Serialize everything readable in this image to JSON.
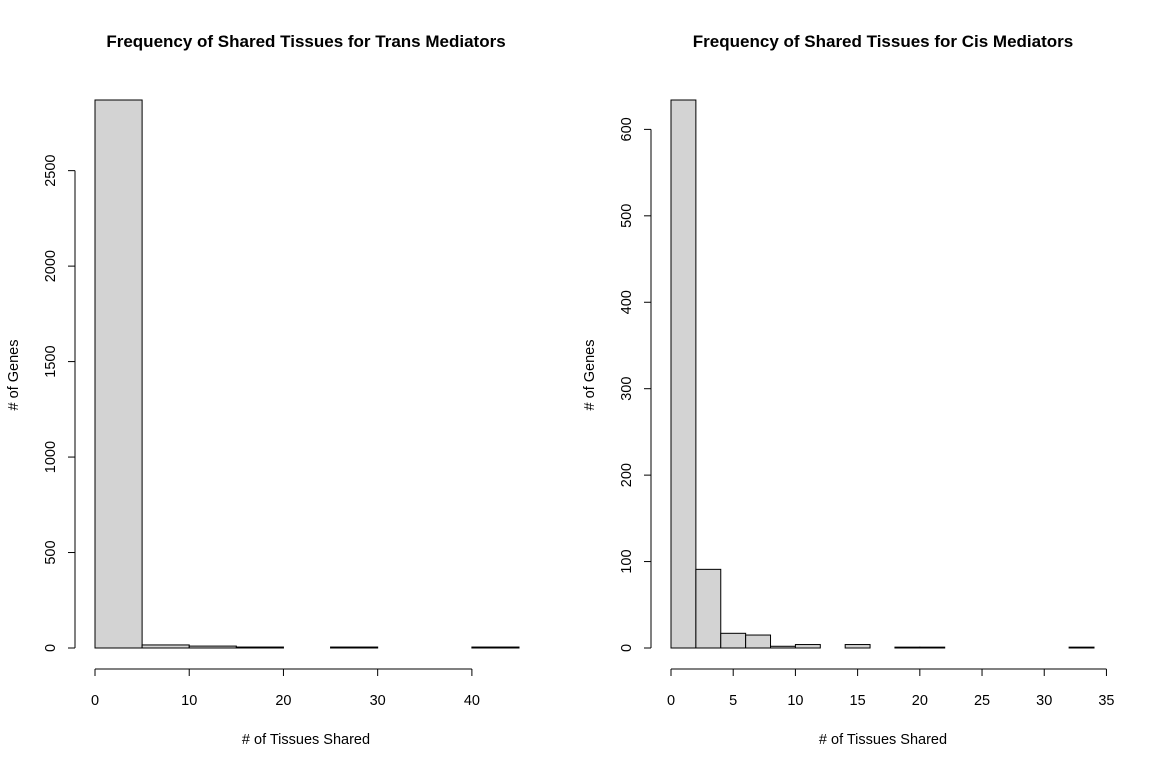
{
  "chart_data": [
    {
      "type": "bar",
      "title": "Frequency of Shared Tissues for Trans Mediators",
      "xlabel": "# of Tissues Shared",
      "ylabel": "# of Genes",
      "bin_edges": [
        0,
        5,
        10,
        15,
        20,
        25,
        30,
        35,
        40,
        45
      ],
      "values": [
        2870,
        16,
        10,
        5,
        0,
        5,
        0,
        0,
        5
      ],
      "xlim": [
        0,
        45
      ],
      "ylim": [
        0,
        2870
      ],
      "xticks": [
        0,
        10,
        20,
        30,
        40
      ],
      "yticks": [
        0,
        500,
        1000,
        1500,
        2000,
        2500
      ],
      "grid": false,
      "legend": "none"
    },
    {
      "type": "bar",
      "title": "Frequency of Shared Tissues for Cis Mediators",
      "xlabel": "# of Tissues Shared",
      "ylabel": "# of Genes",
      "bin_edges": [
        0,
        2,
        4,
        6,
        8,
        10,
        12,
        14,
        16,
        18,
        20,
        22,
        24,
        26,
        28,
        30,
        32,
        34
      ],
      "values": [
        634,
        91,
        17,
        15,
        2,
        4,
        0,
        4,
        0,
        1,
        1,
        0,
        0,
        0,
        0,
        0,
        1
      ],
      "xlim": [
        0,
        34
      ],
      "ylim": [
        0,
        634
      ],
      "xticks": [
        0,
        5,
        10,
        15,
        20,
        25,
        30,
        35
      ],
      "yticks": [
        0,
        100,
        200,
        300,
        400,
        500,
        600
      ],
      "grid": false,
      "legend": "none"
    }
  ]
}
